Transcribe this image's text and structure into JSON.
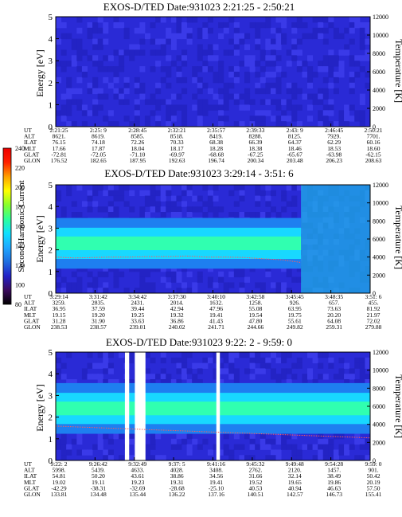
{
  "colorbar": {
    "label": "Second Harmonic Current",
    "ticks": [
      "80",
      "100",
      "120",
      "140",
      "160",
      "180",
      "200",
      "220",
      "240"
    ],
    "stops": [
      "#000000",
      "#3b0a5e",
      "#2222c8",
      "#1f6fe0",
      "#1ea8ff",
      "#10e0ff",
      "#2cff9a",
      "#88ff2a",
      "#ffff00",
      "#ffa000",
      "#ff2000",
      "#ee0000"
    ]
  },
  "row_labels": [
    "UT",
    "ALT",
    "ILAT",
    "MLT",
    "GLAT",
    "GLON"
  ],
  "chart_data": [
    {
      "type": "heatmap",
      "title": "EXOS-D/TED   Date:931023  2:21:25 - 2:50:21",
      "ylabel": "Energy [eV]",
      "ylabel2": "Temperature [K]",
      "ylim": [
        0,
        5
      ],
      "yticks": [
        "0",
        "1",
        "2",
        "3",
        "4",
        "5"
      ],
      "y2lim": [
        0,
        12000
      ],
      "y2ticks": [
        "0",
        "2000",
        "4000",
        "6000",
        "8000",
        "10000",
        "12000"
      ],
      "band": {
        "center": null,
        "width": 0
      },
      "gaps": [],
      "temperature_trace": [],
      "ephemeris": {
        "UT": [
          "2:21:25",
          "2:25: 9",
          "2:28:45",
          "2:32:21",
          "2:35:57",
          "2:39:33",
          "2:43: 9",
          "2:46:45",
          "2:50:21"
        ],
        "ALT": [
          "8621.",
          "8619.",
          "8585.",
          "8518.",
          "8419.",
          "8288.",
          "8125.",
          "7929.",
          "7701."
        ],
        "ILAT": [
          "76.15",
          "74.18",
          "72.26",
          "70.33",
          "68.38",
          "66.39",
          "64.37",
          "62.29",
          "60.16"
        ],
        "MLT": [
          "17.66",
          "17.87",
          "18.04",
          "18.17",
          "18.28",
          "18.38",
          "18.46",
          "18.53",
          "18.60"
        ],
        "GLAT": [
          "-72.81",
          "-72.05",
          "-71.10",
          "-69.97",
          "-68.68",
          "-67.25",
          "-65.67",
          "-63.98",
          "-62.15"
        ],
        "GLON": [
          "176.52",
          "182.65",
          "187.95",
          "192.63",
          "196.74",
          "200.34",
          "203.48",
          "206.23",
          "208.63"
        ]
      }
    },
    {
      "type": "heatmap",
      "title": "EXOS-D/TED   Date:931023  3:29:14 - 3:51: 6",
      "ylabel": "Energy [eV]",
      "ylabel2": "Temperature [K]",
      "ylim": [
        0,
        5
      ],
      "yticks": [
        "0",
        "1",
        "2",
        "3",
        "4",
        "5"
      ],
      "y2lim": [
        0,
        12000
      ],
      "y2ticks": [
        "0",
        "2000",
        "4000",
        "6000",
        "8000",
        "10000",
        "12000"
      ],
      "band": {
        "center": 2.3,
        "width": 0.9,
        "end_fraction": 0.78
      },
      "gaps": [],
      "temperature_trace": [
        4000,
        3900,
        3950,
        4000,
        4000,
        4050,
        4050,
        4100,
        4000,
        4000,
        3950,
        3800,
        3700,
        3400
      ],
      "ephemeris": {
        "UT": [
          "3:29:14",
          "3:31:42",
          "3:34:42",
          "3:37:30",
          "3:40:10",
          "3:42:58",
          "3:45:45",
          "3:48:35",
          "3:51: 6"
        ],
        "ALT": [
          "3259.",
          "2835.",
          "2431.",
          "2014.",
          "1632.",
          "1258.",
          "926.",
          "657.",
          "455."
        ],
        "ILAT": [
          "36.95",
          "37.59",
          "39.44",
          "42.94",
          "47.96",
          "55.08",
          "63.95",
          "73.63",
          "81.92"
        ],
        "MLT": [
          "19.15",
          "19.20",
          "19.25",
          "19.32",
          "19.41",
          "19.54",
          "19.75",
          "20.20",
          "21.97"
        ],
        "GLAT": [
          "31.28",
          "31.90",
          "33.63",
          "36.86",
          "41.43",
          "47.80",
          "55.61",
          "64.08",
          "72.02"
        ],
        "GLON": [
          "238.53",
          "238.57",
          "239.01",
          "240.02",
          "241.71",
          "244.66",
          "249.82",
          "259.31",
          "279.88"
        ]
      }
    },
    {
      "type": "heatmap",
      "title": "EXOS-D/TED   Date:931023  9:22: 2 - 9:59: 0",
      "ylabel": "Energy [eV]",
      "ylabel2": "Temperature [K]",
      "ylim": [
        0,
        5
      ],
      "yticks": [
        "0",
        "1",
        "2",
        "3",
        "4",
        "5"
      ],
      "y2lim": [
        0,
        12000
      ],
      "y2ticks": [
        "0",
        "2000",
        "4000",
        "6000",
        "8000",
        "10000",
        "12000"
      ],
      "band": {
        "center": 2.4,
        "width": 0.9,
        "end_fraction": 1.0
      },
      "gaps": [
        [
          "9:30:10",
          "9:30:40"
        ],
        [
          "9:31:20",
          "9:32:35"
        ],
        [
          "9:40:55",
          "9:41:20"
        ]
      ],
      "temperature_trace": [
        3800,
        3700,
        3600,
        3500,
        3400,
        3300,
        3200,
        3100,
        3000,
        2900,
        2800,
        2700,
        2600,
        2500
      ],
      "ephemeris": {
        "UT": [
          "9:22: 2",
          "9:26:42",
          "9:32:49",
          "9:37: 5",
          "9:41:16",
          "9:45:32",
          "9:49:48",
          "9:54:28",
          "9:59: 0"
        ],
        "ALT": [
          "5998.",
          "5439.",
          "4633.",
          "4028.",
          "3408.",
          "2762.",
          "2120.",
          "1457.",
          "901."
        ],
        "ILAT": [
          "54.81",
          "50.20",
          "43.61",
          "38.86",
          "34.56",
          "31.66",
          "32.14",
          "38.49",
          "50.42"
        ],
        "MLT": [
          "19.02",
          "19.11",
          "19.23",
          "19.31",
          "19.41",
          "19.52",
          "19.65",
          "19.86",
          "20.19"
        ],
        "GLAT": [
          "-42.29",
          "-38.31",
          "-32.69",
          "-28.68",
          "-25.10",
          "40.53",
          "40.94",
          "46.63",
          "57.50"
        ],
        "GLON": [
          "133.81",
          "134.48",
          "135.44",
          "136.22",
          "137.16",
          "140.51",
          "142.57",
          "146.73",
          "155.41"
        ]
      }
    }
  ]
}
